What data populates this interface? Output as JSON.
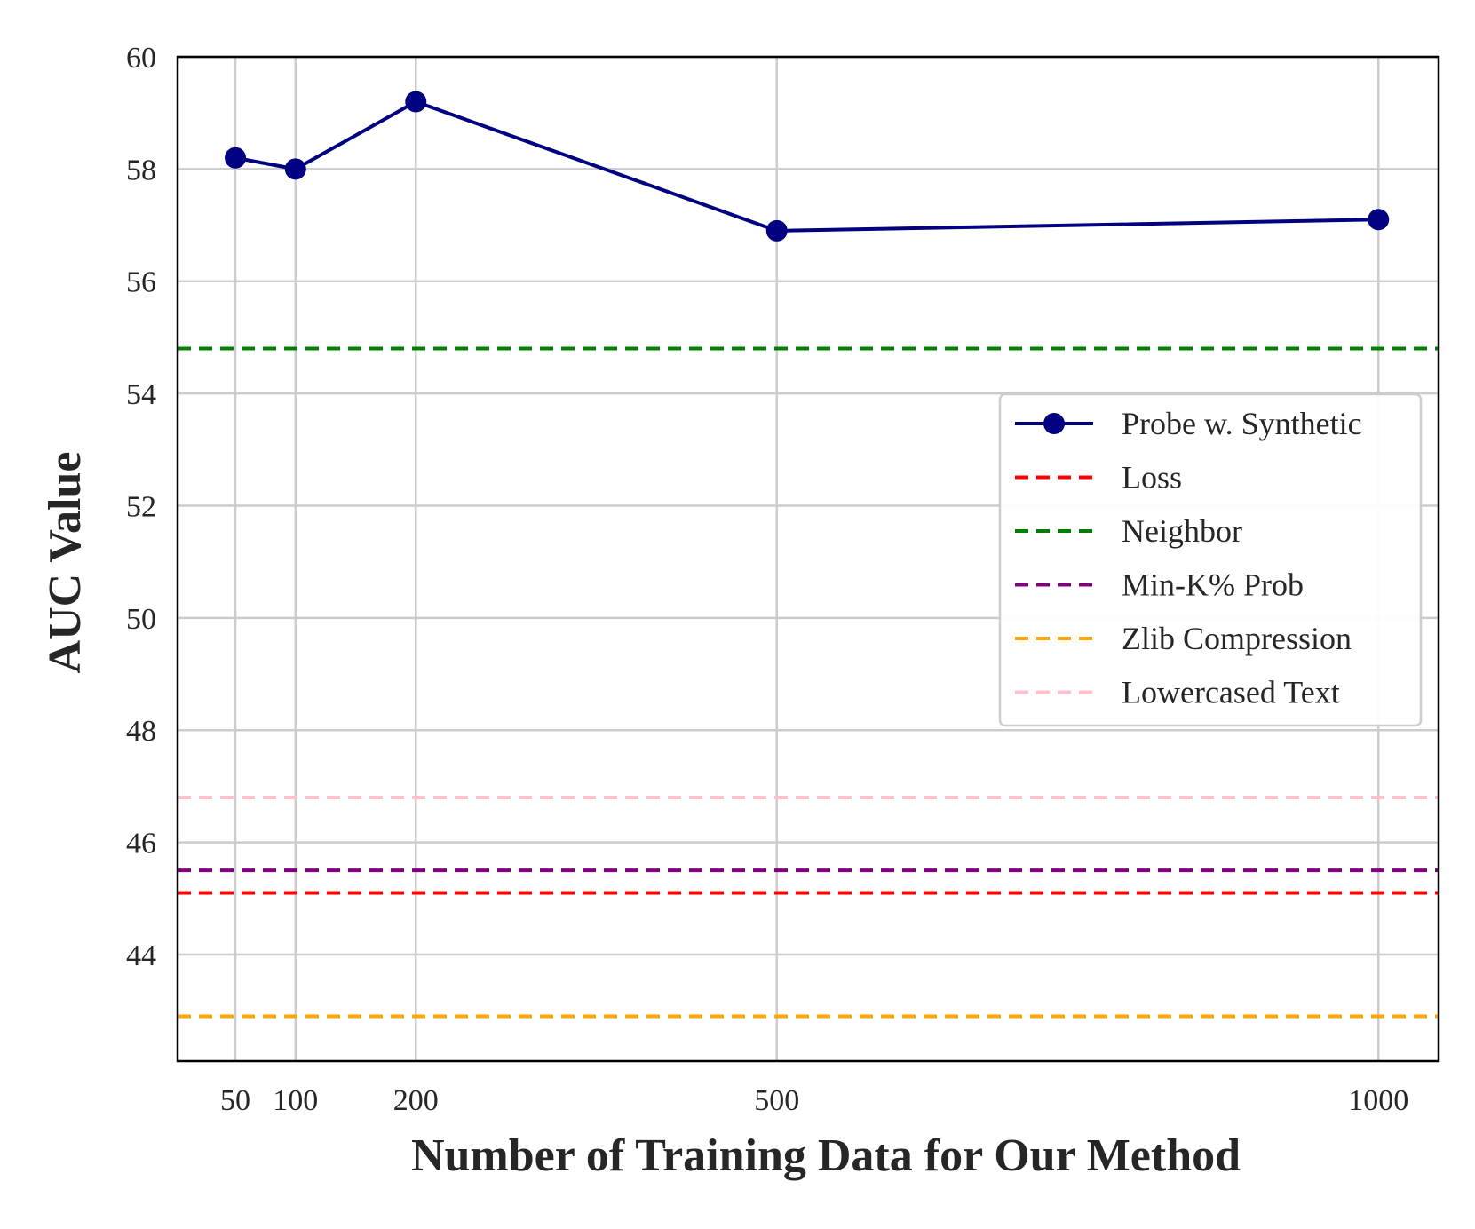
{
  "chart_data": {
    "type": "line",
    "title": "",
    "xlabel": "Number of Training Data for Our Method",
    "ylabel": "AUC Value",
    "x_ticks": [
      50,
      100,
      200,
      500,
      1000
    ],
    "x_tick_labels": [
      "50",
      "100",
      "200",
      "500",
      "1000"
    ],
    "xlim": [
      2,
      1050
    ],
    "y_ticks": [
      44,
      46,
      48,
      50,
      52,
      54,
      56,
      58,
      60
    ],
    "y_tick_labels": [
      "44",
      "46",
      "48",
      "50",
      "52",
      "54",
      "56",
      "58",
      "60"
    ],
    "ylim": [
      42.1,
      60
    ],
    "grid": true,
    "legend_position": "center-right",
    "series": [
      {
        "name": "Probe w. Synthetic",
        "style": "solid-marker",
        "color": "#000080",
        "x": [
          50,
          100,
          200,
          500,
          1000
        ],
        "y": [
          58.2,
          58.0,
          59.2,
          56.9,
          57.1
        ]
      },
      {
        "name": "Loss",
        "style": "dashed",
        "color": "#ff0000",
        "y": 45.1
      },
      {
        "name": "Neighbor",
        "style": "dashed",
        "color": "#008000",
        "y": 54.8
      },
      {
        "name": "Min-K% Prob",
        "style": "dashed",
        "color": "#800080",
        "y": 45.5
      },
      {
        "name": "Zlib Compression",
        "style": "dashed",
        "color": "#ffa500",
        "y": 42.9
      },
      {
        "name": "Lowercased Text",
        "style": "dashed",
        "color": "#ffc0cb",
        "y": 46.8
      }
    ]
  }
}
